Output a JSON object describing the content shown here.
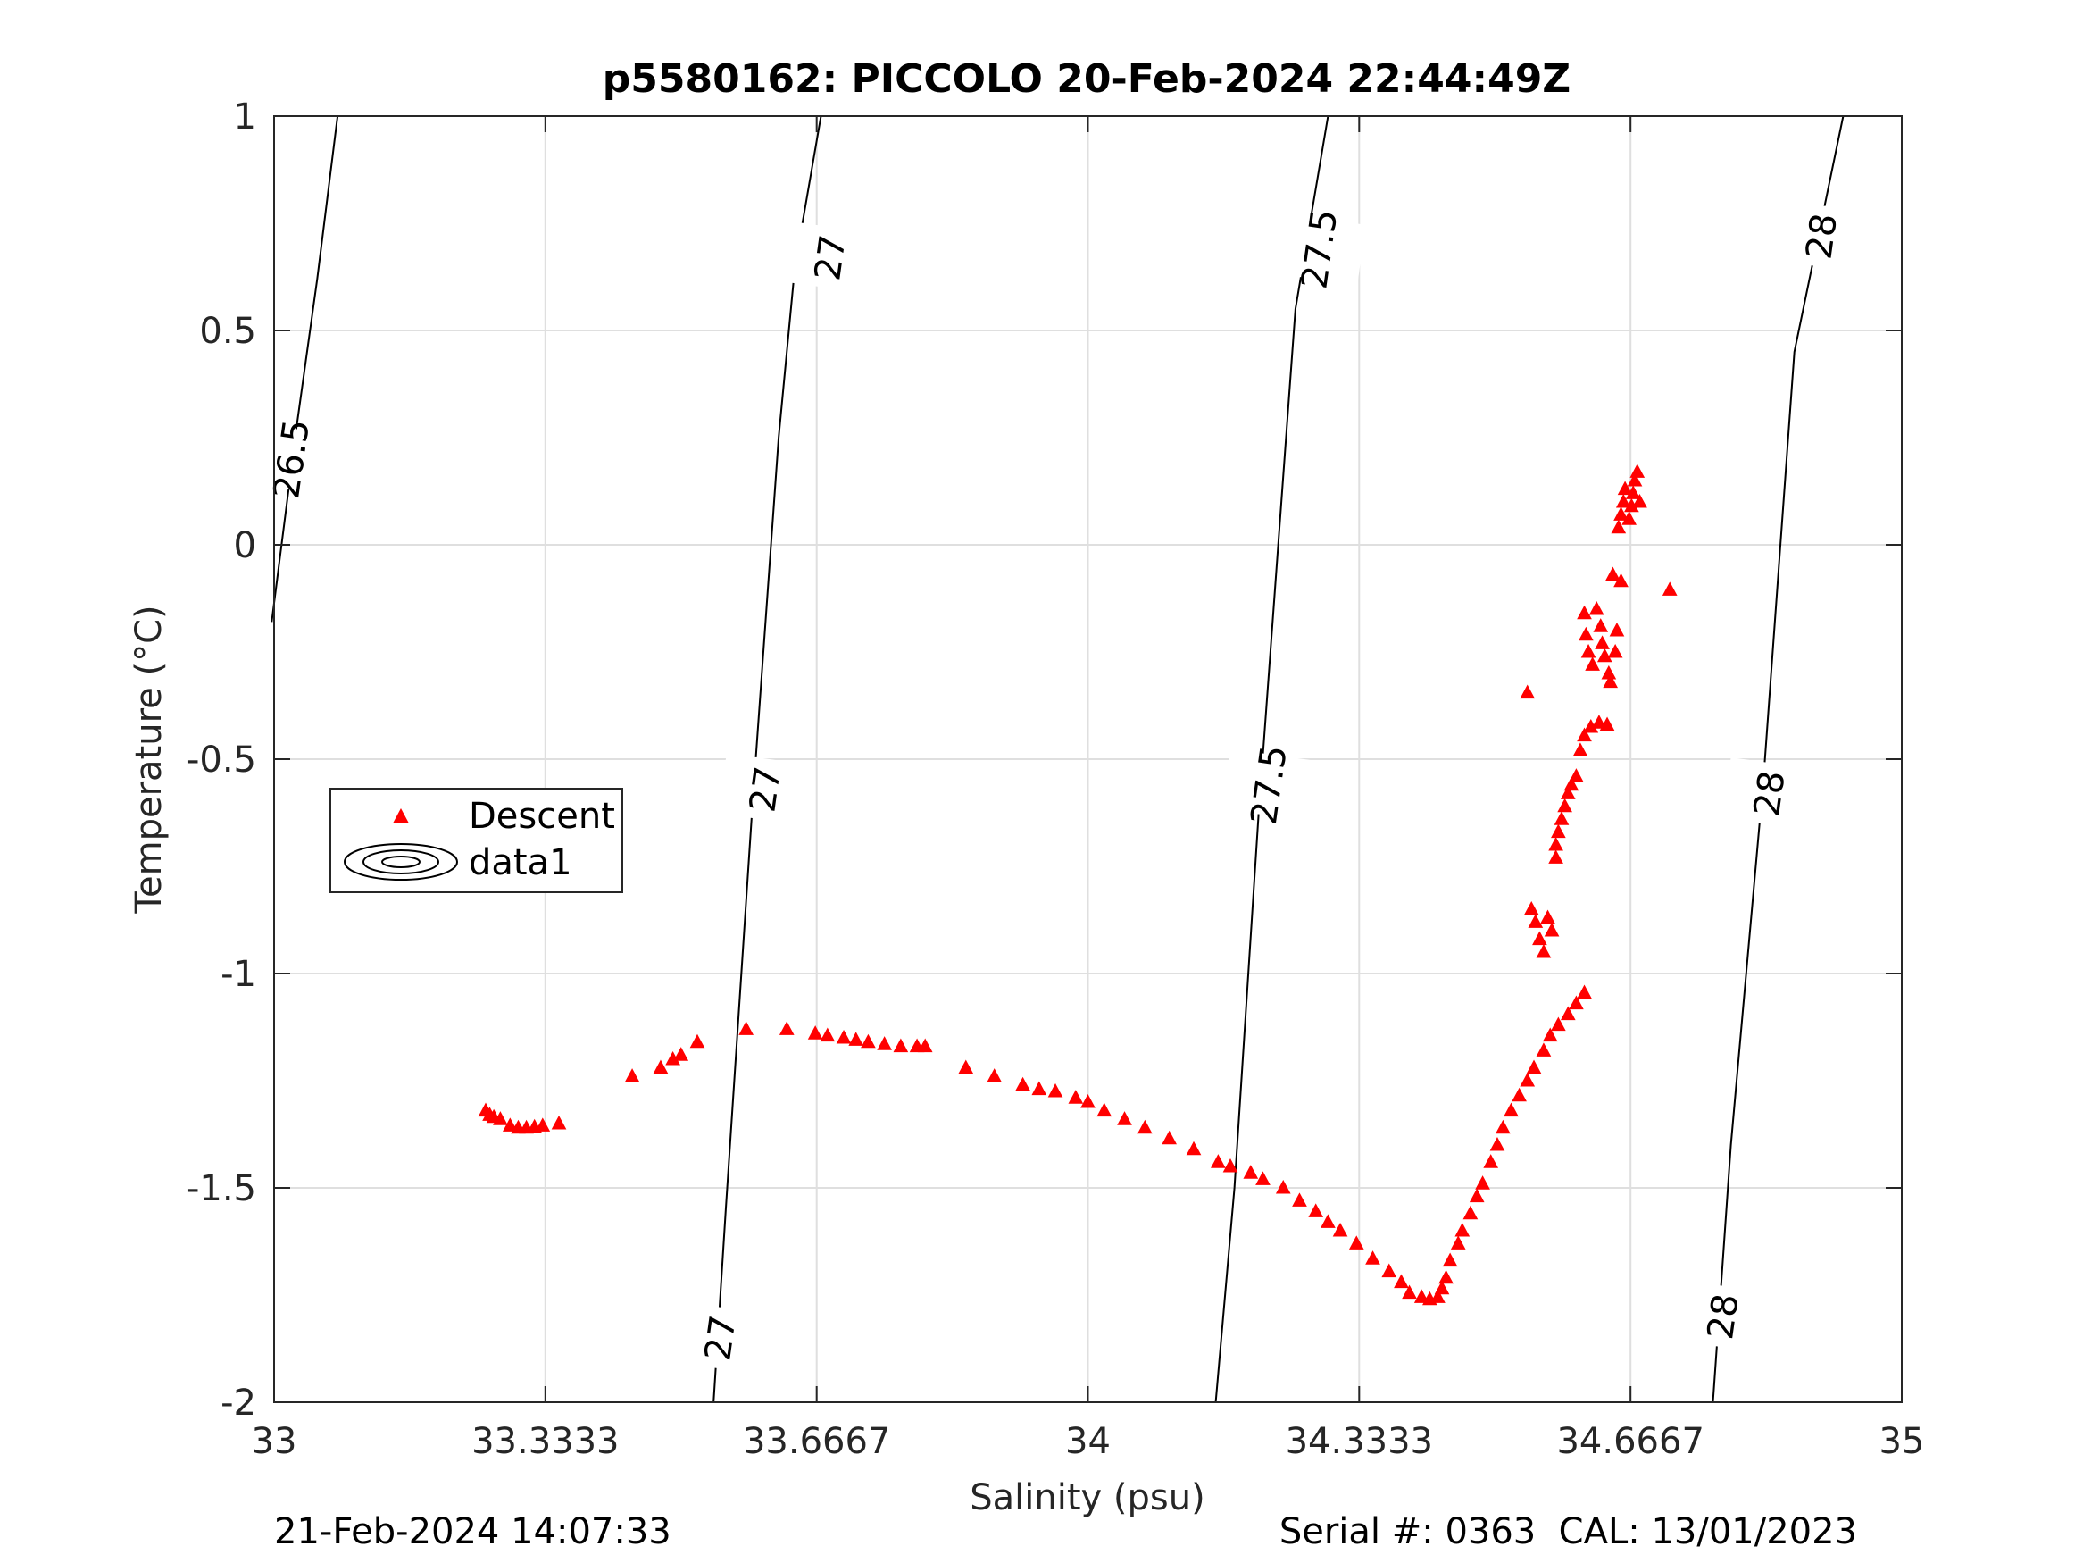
{
  "chart_data": {
    "type": "scatter",
    "title": "p5580162: PICCOLO 20-Feb-2024 22:44:49Z",
    "xlabel": "Salinity (psu)",
    "ylabel": "Temperature (°C)",
    "xlim": [
      33,
      35
    ],
    "ylim": [
      -2,
      1
    ],
    "x_ticks": [
      33,
      33.3333,
      33.6667,
      34,
      34.3333,
      34.6667,
      35
    ],
    "x_tick_labels": [
      "33",
      "33.3333",
      "33.6667",
      "34",
      "34.3333",
      "34.6667",
      "35"
    ],
    "y_ticks": [
      -2,
      -1.5,
      -1,
      -0.5,
      0,
      0.5,
      1
    ],
    "y_tick_labels": [
      "-2",
      "-1.5",
      "-1",
      "-0.5",
      "0",
      "0.5",
      "1"
    ],
    "grid": true,
    "legend_position": "middle-left",
    "legend": [
      {
        "label": "Descent",
        "marker": "triangle",
        "color": "#ff0000"
      },
      {
        "label": "data1",
        "marker": "contour",
        "color": "#000000"
      }
    ],
    "isopycnals": [
      {
        "label": "26.5",
        "points": [
          [
            32.997,
            -0.18
          ],
          [
            33.028,
            0.28
          ],
          [
            33.053,
            0.62
          ],
          [
            33.078,
            1.0
          ]
        ],
        "labels_at": [
          [
            33.021,
            0.2
          ]
        ]
      },
      {
        "label": "27",
        "points": [
          [
            33.54,
            -2.0
          ],
          [
            33.555,
            -1.55
          ],
          [
            33.588,
            -0.6
          ],
          [
            33.62,
            0.25
          ],
          [
            33.64,
            0.65
          ],
          [
            33.672,
            1.0
          ]
        ],
        "labels_at": [
          [
            33.548,
            -1.85
          ],
          [
            33.603,
            -0.57
          ],
          [
            33.683,
            0.67
          ]
        ]
      },
      {
        "label": "27.5",
        "points": [
          [
            34.157,
            -2.0
          ],
          [
            34.18,
            -1.5
          ],
          [
            34.21,
            -0.62
          ],
          [
            34.255,
            0.55
          ],
          [
            34.295,
            1.0
          ]
        ],
        "labels_at": [
          [
            34.222,
            -0.56
          ],
          [
            34.284,
            0.69
          ]
        ]
      },
      {
        "label": "28",
        "points": [
          [
            34.768,
            -2.0
          ],
          [
            34.79,
            -1.4
          ],
          [
            34.83,
            -0.55
          ],
          [
            34.868,
            0.45
          ],
          [
            34.928,
            1.0
          ]
        ],
        "labels_at": [
          [
            34.78,
            -1.8
          ],
          [
            34.837,
            -0.58
          ],
          [
            34.901,
            0.72
          ]
        ]
      }
    ],
    "series": [
      {
        "name": "Descent",
        "color": "#ff0000",
        "marker": "triangle",
        "points": [
          [
            33.26,
            -1.32
          ],
          [
            33.265,
            -1.33
          ],
          [
            33.27,
            -1.335
          ],
          [
            33.278,
            -1.34
          ],
          [
            33.29,
            -1.355
          ],
          [
            33.3,
            -1.36
          ],
          [
            33.31,
            -1.36
          ],
          [
            33.32,
            -1.358
          ],
          [
            33.33,
            -1.355
          ],
          [
            33.35,
            -1.35
          ],
          [
            33.44,
            -1.24
          ],
          [
            33.475,
            -1.22
          ],
          [
            33.49,
            -1.2
          ],
          [
            33.5,
            -1.19
          ],
          [
            33.52,
            -1.16
          ],
          [
            33.58,
            -1.13
          ],
          [
            33.63,
            -1.13
          ],
          [
            33.665,
            -1.14
          ],
          [
            33.68,
            -1.145
          ],
          [
            33.7,
            -1.15
          ],
          [
            33.715,
            -1.155
          ],
          [
            33.73,
            -1.16
          ],
          [
            33.75,
            -1.165
          ],
          [
            33.77,
            -1.17
          ],
          [
            33.79,
            -1.17
          ],
          [
            33.8,
            -1.17
          ],
          [
            33.85,
            -1.22
          ],
          [
            33.885,
            -1.24
          ],
          [
            33.92,
            -1.26
          ],
          [
            33.94,
            -1.27
          ],
          [
            33.96,
            -1.275
          ],
          [
            33.985,
            -1.29
          ],
          [
            34.0,
            -1.3
          ],
          [
            34.02,
            -1.32
          ],
          [
            34.045,
            -1.34
          ],
          [
            34.07,
            -1.36
          ],
          [
            34.1,
            -1.385
          ],
          [
            34.13,
            -1.41
          ],
          [
            34.16,
            -1.44
          ],
          [
            34.175,
            -1.45
          ],
          [
            34.2,
            -1.465
          ],
          [
            34.215,
            -1.48
          ],
          [
            34.24,
            -1.5
          ],
          [
            34.26,
            -1.53
          ],
          [
            34.28,
            -1.555
          ],
          [
            34.295,
            -1.58
          ],
          [
            34.31,
            -1.6
          ],
          [
            34.33,
            -1.63
          ],
          [
            34.35,
            -1.665
          ],
          [
            34.37,
            -1.695
          ],
          [
            34.385,
            -1.72
          ],
          [
            34.395,
            -1.745
          ],
          [
            34.41,
            -1.755
          ],
          [
            34.42,
            -1.76
          ],
          [
            34.43,
            -1.755
          ],
          [
            34.435,
            -1.735
          ],
          [
            34.44,
            -1.71
          ],
          [
            34.445,
            -1.67
          ],
          [
            34.455,
            -1.63
          ],
          [
            34.46,
            -1.6
          ],
          [
            34.47,
            -1.56
          ],
          [
            34.478,
            -1.52
          ],
          [
            34.485,
            -1.49
          ],
          [
            34.495,
            -1.44
          ],
          [
            34.503,
            -1.4
          ],
          [
            34.51,
            -1.36
          ],
          [
            34.52,
            -1.32
          ],
          [
            34.53,
            -1.285
          ],
          [
            34.54,
            -1.25
          ],
          [
            34.548,
            -1.22
          ],
          [
            34.56,
            -1.18
          ],
          [
            34.568,
            -1.145
          ],
          [
            34.578,
            -1.12
          ],
          [
            34.59,
            -1.095
          ],
          [
            34.6,
            -1.07
          ],
          [
            34.61,
            -1.045
          ],
          [
            34.54,
            -0.345
          ],
          [
            34.545,
            -0.85
          ],
          [
            34.55,
            -0.88
          ],
          [
            34.555,
            -0.92
          ],
          [
            34.56,
            -0.95
          ],
          [
            34.565,
            -0.87
          ],
          [
            34.57,
            -0.9
          ],
          [
            34.575,
            -0.73
          ],
          [
            34.575,
            -0.7
          ],
          [
            34.578,
            -0.67
          ],
          [
            34.582,
            -0.64
          ],
          [
            34.586,
            -0.61
          ],
          [
            34.59,
            -0.58
          ],
          [
            34.594,
            -0.56
          ],
          [
            34.6,
            -0.54
          ],
          [
            34.605,
            -0.48
          ],
          [
            34.61,
            -0.445
          ],
          [
            34.618,
            -0.425
          ],
          [
            34.628,
            -0.415
          ],
          [
            34.638,
            -0.42
          ],
          [
            34.61,
            -0.16
          ],
          [
            34.612,
            -0.21
          ],
          [
            34.615,
            -0.25
          ],
          [
            34.62,
            -0.28
          ],
          [
            34.625,
            -0.15
          ],
          [
            34.63,
            -0.19
          ],
          [
            34.632,
            -0.23
          ],
          [
            34.635,
            -0.26
          ],
          [
            34.64,
            -0.3
          ],
          [
            34.642,
            -0.32
          ],
          [
            34.645,
            -0.07
          ],
          [
            34.655,
            -0.085
          ],
          [
            34.65,
            -0.2
          ],
          [
            34.648,
            -0.25
          ],
          [
            34.652,
            0.04
          ],
          [
            34.655,
            0.07
          ],
          [
            34.658,
            0.1
          ],
          [
            34.66,
            0.13
          ],
          [
            34.665,
            0.06
          ],
          [
            34.668,
            0.09
          ],
          [
            34.67,
            0.12
          ],
          [
            34.672,
            0.15
          ],
          [
            34.675,
            0.17
          ],
          [
            34.678,
            0.1
          ],
          [
            34.715,
            -0.105
          ]
        ]
      }
    ],
    "footer_left": "21-Feb-2024 14:07:33",
    "footer_right": "Serial #: 0363  CAL: 13/01/2023"
  }
}
